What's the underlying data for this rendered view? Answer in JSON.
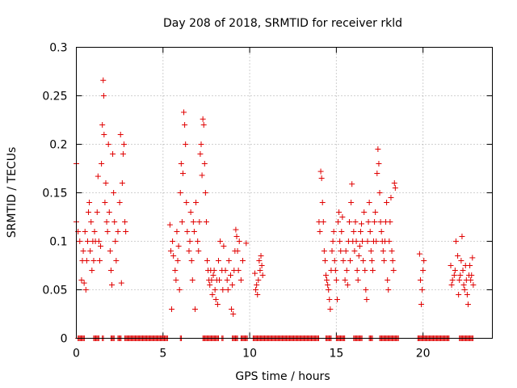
{
  "chart_data": {
    "type": "scatter",
    "title": "Day 208 of 2018, SRMTID for receiver rkld",
    "xlabel": "GPS time / hours",
    "ylabel": "SRMTID / TECUs",
    "xlim": [
      0,
      24
    ],
    "ylim": [
      0,
      0.3
    ],
    "grid": true,
    "legend": "none",
    "marker": "plus",
    "color": "#e00000",
    "x_ticks": [
      0,
      5,
      10,
      15,
      20
    ],
    "x_tick_labels": [
      "0",
      "5",
      "10",
      "15",
      "20"
    ],
    "y_ticks": [
      0,
      0.05,
      0.1,
      0.15,
      0.2,
      0.25,
      0.3
    ],
    "y_tick_labels": [
      "0",
      "0.05",
      "0.1",
      "0.15",
      "0.2",
      "0.25",
      "0.3"
    ],
    "series": [
      {
        "name": "SRMTID",
        "points": [
          [
            0.0,
            0.18
          ],
          [
            0.0,
            0.12
          ],
          [
            0.1,
            0.11
          ],
          [
            0.2,
            0.1
          ],
          [
            0.3,
            0.06
          ],
          [
            0.35,
            0.08
          ],
          [
            0.4,
            0.09
          ],
          [
            0.45,
            0.057
          ],
          [
            0.5,
            0.11
          ],
          [
            0.55,
            0.05
          ],
          [
            0.6,
            0.08
          ],
          [
            0.65,
            0.1
          ],
          [
            0.7,
            0.13
          ],
          [
            0.75,
            0.14
          ],
          [
            0.8,
            0.09
          ],
          [
            0.85,
            0.12
          ],
          [
            0.9,
            0.07
          ],
          [
            0.95,
            0.1
          ],
          [
            1.0,
            0.08
          ],
          [
            1.05,
            0.11
          ],
          [
            1.1,
            0.1
          ],
          [
            1.2,
            0.13
          ],
          [
            1.25,
            0.167
          ],
          [
            1.3,
            0.1
          ],
          [
            1.35,
            0.08
          ],
          [
            1.4,
            0.095
          ],
          [
            1.45,
            0.18
          ],
          [
            1.5,
            0.22
          ],
          [
            1.55,
            0.266
          ],
          [
            1.58,
            0.25
          ],
          [
            1.6,
            0.21
          ],
          [
            1.65,
            0.14
          ],
          [
            1.7,
            0.16
          ],
          [
            1.75,
            0.12
          ],
          [
            1.8,
            0.11
          ],
          [
            1.85,
            0.2
          ],
          [
            1.9,
            0.13
          ],
          [
            1.95,
            0.09
          ],
          [
            2.0,
            0.07
          ],
          [
            2.05,
            0.055
          ],
          [
            2.1,
            0.19
          ],
          [
            2.15,
            0.15
          ],
          [
            2.2,
            0.12
          ],
          [
            2.25,
            0.1
          ],
          [
            2.3,
            0.08
          ],
          [
            2.4,
            0.11
          ],
          [
            2.5,
            0.14
          ],
          [
            2.55,
            0.21
          ],
          [
            2.6,
            0.057
          ],
          [
            2.65,
            0.16
          ],
          [
            2.7,
            0.19
          ],
          [
            2.75,
            0.2
          ],
          [
            2.8,
            0.12
          ],
          [
            2.85,
            0.11
          ],
          [
            5.4,
            0.117
          ],
          [
            5.45,
            0.09
          ],
          [
            5.5,
            0.03
          ],
          [
            5.55,
            0.1
          ],
          [
            5.6,
            0.085
          ],
          [
            5.7,
            0.07
          ],
          [
            5.75,
            0.06
          ],
          [
            5.8,
            0.11
          ],
          [
            5.85,
            0.08
          ],
          [
            5.9,
            0.095
          ],
          [
            5.95,
            0.05
          ],
          [
            6.0,
            0.15
          ],
          [
            6.05,
            0.18
          ],
          [
            6.1,
            0.12
          ],
          [
            6.15,
            0.17
          ],
          [
            6.2,
            0.233
          ],
          [
            6.25,
            0.22
          ],
          [
            6.3,
            0.2
          ],
          [
            6.35,
            0.14
          ],
          [
            6.4,
            0.11
          ],
          [
            6.5,
            0.09
          ],
          [
            6.55,
            0.1
          ],
          [
            6.6,
            0.13
          ],
          [
            6.65,
            0.08
          ],
          [
            6.7,
            0.06
          ],
          [
            6.75,
            0.12
          ],
          [
            6.8,
            0.11
          ],
          [
            6.85,
            0.03
          ],
          [
            6.9,
            0.14
          ],
          [
            7.0,
            0.1
          ],
          [
            7.05,
            0.09
          ],
          [
            7.1,
            0.12
          ],
          [
            7.15,
            0.19
          ],
          [
            7.2,
            0.2
          ],
          [
            7.25,
            0.168
          ],
          [
            7.3,
            0.226
          ],
          [
            7.35,
            0.22
          ],
          [
            7.4,
            0.18
          ],
          [
            7.45,
            0.15
          ],
          [
            7.5,
            0.12
          ],
          [
            7.55,
            0.08
          ],
          [
            7.6,
            0.07
          ],
          [
            7.65,
            0.06
          ],
          [
            7.7,
            0.055
          ],
          [
            7.75,
            0.07
          ],
          [
            7.8,
            0.06
          ],
          [
            7.85,
            0.045
          ],
          [
            7.9,
            0.065
          ],
          [
            7.95,
            0.07
          ],
          [
            8.0,
            0.05
          ],
          [
            8.05,
            0.04
          ],
          [
            8.1,
            0.06
          ],
          [
            8.15,
            0.035
          ],
          [
            8.2,
            0.08
          ],
          [
            8.25,
            0.06
          ],
          [
            8.3,
            0.1
          ],
          [
            8.4,
            0.07
          ],
          [
            8.45,
            0.05
          ],
          [
            8.5,
            0.095
          ],
          [
            8.6,
            0.07
          ],
          [
            8.7,
            0.06
          ],
          [
            8.75,
            0.05
          ],
          [
            8.8,
            0.08
          ],
          [
            8.9,
            0.065
          ],
          [
            8.95,
            0.03
          ],
          [
            9.0,
            0.055
          ],
          [
            9.05,
            0.025
          ],
          [
            9.1,
            0.07
          ],
          [
            9.15,
            0.09
          ],
          [
            9.2,
            0.112
          ],
          [
            9.25,
            0.105
          ],
          [
            9.3,
            0.09
          ],
          [
            9.35,
            0.07
          ],
          [
            9.4,
            0.1
          ],
          [
            9.5,
            0.06
          ],
          [
            9.6,
            0.08
          ],
          [
            9.8,
            0.098
          ],
          [
            10.3,
            0.067
          ],
          [
            10.35,
            0.05
          ],
          [
            10.4,
            0.055
          ],
          [
            10.45,
            0.045
          ],
          [
            10.5,
            0.06
          ],
          [
            10.55,
            0.08
          ],
          [
            10.6,
            0.07
          ],
          [
            10.65,
            0.085
          ],
          [
            10.7,
            0.075
          ],
          [
            10.75,
            0.065
          ],
          [
            14.0,
            0.12
          ],
          [
            14.05,
            0.11
          ],
          [
            14.1,
            0.172
          ],
          [
            14.15,
            0.165
          ],
          [
            14.2,
            0.14
          ],
          [
            14.25,
            0.12
          ],
          [
            14.3,
            0.09
          ],
          [
            14.35,
            0.08
          ],
          [
            14.4,
            0.065
          ],
          [
            14.45,
            0.06
          ],
          [
            14.5,
            0.055
          ],
          [
            14.55,
            0.05
          ],
          [
            14.6,
            0.04
          ],
          [
            14.65,
            0.03
          ],
          [
            14.7,
            0.07
          ],
          [
            14.75,
            0.09
          ],
          [
            14.8,
            0.1
          ],
          [
            14.85,
            0.11
          ],
          [
            14.9,
            0.08
          ],
          [
            14.95,
            0.07
          ],
          [
            15.0,
            0.06
          ],
          [
            15.05,
            0.04
          ],
          [
            15.1,
            0.12
          ],
          [
            15.15,
            0.13
          ],
          [
            15.2,
            0.1
          ],
          [
            15.25,
            0.09
          ],
          [
            15.3,
            0.11
          ],
          [
            15.35,
            0.125
          ],
          [
            15.4,
            0.08
          ],
          [
            15.5,
            0.06
          ],
          [
            15.55,
            0.09
          ],
          [
            15.6,
            0.07
          ],
          [
            15.65,
            0.055
          ],
          [
            15.7,
            0.1
          ],
          [
            15.75,
            0.12
          ],
          [
            15.8,
            0.08
          ],
          [
            15.85,
            0.14
          ],
          [
            15.9,
            0.159
          ],
          [
            15.95,
            0.1
          ],
          [
            16.0,
            0.11
          ],
          [
            16.05,
            0.09
          ],
          [
            16.1,
            0.12
          ],
          [
            16.15,
            0.1
          ],
          [
            16.2,
            0.07
          ],
          [
            16.25,
            0.06
          ],
          [
            16.3,
            0.085
          ],
          [
            16.35,
            0.095
          ],
          [
            16.4,
            0.11
          ],
          [
            16.45,
            0.118
          ],
          [
            16.5,
            0.1
          ],
          [
            16.55,
            0.08
          ],
          [
            16.6,
            0.13
          ],
          [
            16.65,
            0.07
          ],
          [
            16.7,
            0.05
          ],
          [
            16.75,
            0.04
          ],
          [
            16.8,
            0.1
          ],
          [
            16.85,
            0.12
          ],
          [
            16.9,
            0.14
          ],
          [
            16.95,
            0.11
          ],
          [
            17.0,
            0.09
          ],
          [
            17.05,
            0.08
          ],
          [
            17.1,
            0.07
          ],
          [
            17.15,
            0.1
          ],
          [
            17.2,
            0.12
          ],
          [
            17.25,
            0.13
          ],
          [
            17.3,
            0.1
          ],
          [
            17.35,
            0.17
          ],
          [
            17.4,
            0.195
          ],
          [
            17.45,
            0.18
          ],
          [
            17.5,
            0.15
          ],
          [
            17.55,
            0.12
          ],
          [
            17.6,
            0.11
          ],
          [
            17.65,
            0.1
          ],
          [
            17.7,
            0.09
          ],
          [
            17.75,
            0.08
          ],
          [
            17.8,
            0.1
          ],
          [
            17.85,
            0.12
          ],
          [
            17.9,
            0.14
          ],
          [
            17.95,
            0.06
          ],
          [
            18.0,
            0.05
          ],
          [
            18.05,
            0.1
          ],
          [
            18.1,
            0.12
          ],
          [
            18.15,
            0.145
          ],
          [
            18.2,
            0.09
          ],
          [
            18.25,
            0.08
          ],
          [
            18.3,
            0.07
          ],
          [
            18.35,
            0.16
          ],
          [
            18.4,
            0.155
          ],
          [
            19.8,
            0.087
          ],
          [
            19.85,
            0.06
          ],
          [
            19.9,
            0.035
          ],
          [
            19.95,
            0.05
          ],
          [
            20.0,
            0.07
          ],
          [
            20.05,
            0.08
          ],
          [
            21.6,
            0.075
          ],
          [
            21.65,
            0.055
          ],
          [
            21.7,
            0.06
          ],
          [
            21.8,
            0.065
          ],
          [
            21.85,
            0.07
          ],
          [
            21.9,
            0.1
          ],
          [
            22.0,
            0.085
          ],
          [
            22.05,
            0.045
          ],
          [
            22.1,
            0.06
          ],
          [
            22.15,
            0.065
          ],
          [
            22.2,
            0.08
          ],
          [
            22.25,
            0.105
          ],
          [
            22.3,
            0.07
          ],
          [
            22.35,
            0.055
          ],
          [
            22.4,
            0.05
          ],
          [
            22.45,
            0.075
          ],
          [
            22.5,
            0.06
          ],
          [
            22.55,
            0.045
          ],
          [
            22.6,
            0.035
          ],
          [
            22.65,
            0.065
          ],
          [
            22.7,
            0.075
          ],
          [
            22.75,
            0.06
          ],
          [
            22.8,
            0.065
          ],
          [
            22.85,
            0.083
          ],
          [
            22.9,
            0.055
          ]
        ],
        "zero_ranges": [
          [
            0.1,
            0.5
          ],
          [
            1.0,
            1.3
          ],
          [
            1.5,
            1.6
          ],
          [
            2.0,
            2.2
          ],
          [
            2.4,
            2.6
          ],
          [
            2.8,
            5.3
          ],
          [
            6.0,
            6.1
          ],
          [
            7.3,
            8.2
          ],
          [
            8.4,
            8.5
          ],
          [
            9.0,
            9.3
          ],
          [
            9.5,
            9.9
          ],
          [
            10.2,
            14.0
          ],
          [
            14.4,
            14.7
          ],
          [
            15.0,
            15.5
          ],
          [
            16.0,
            16.5
          ],
          [
            16.9,
            17.1
          ],
          [
            17.5,
            18.6
          ],
          [
            19.7,
            21.5
          ],
          [
            22.1,
            22.9
          ]
        ]
      }
    ]
  }
}
